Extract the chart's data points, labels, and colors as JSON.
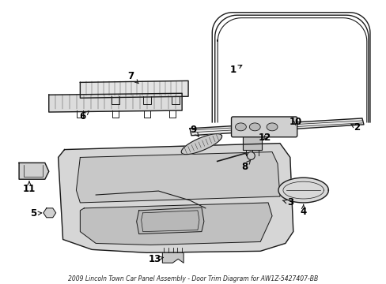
{
  "title": "2009 Lincoln Town Car Panel Assembly - Door Trim Diagram for AW1Z-5427407-BB",
  "background_color": "#ffffff",
  "line_color": "#1a1a1a",
  "label_color": "#000000",
  "fig_w": 4.89,
  "fig_h": 3.6,
  "dpi": 100
}
